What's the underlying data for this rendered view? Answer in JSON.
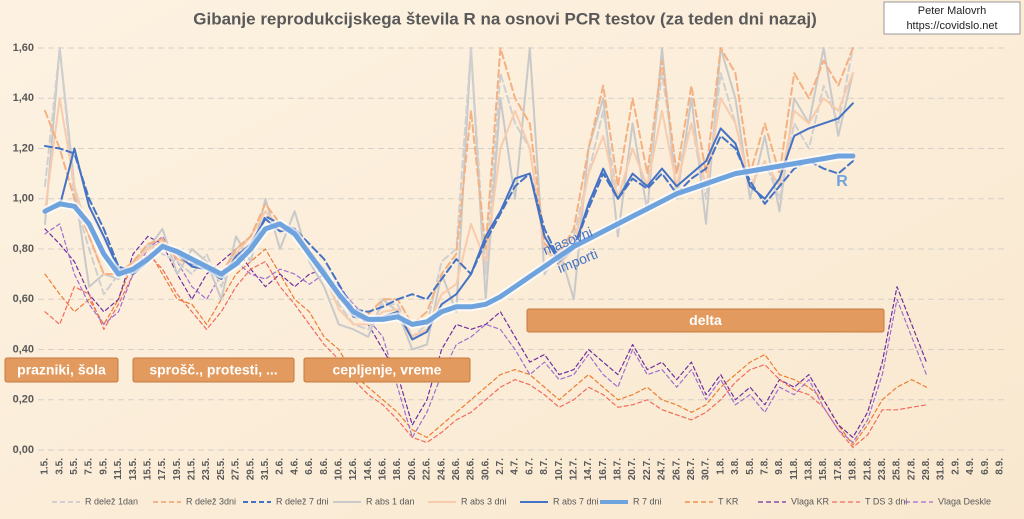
{
  "chart_data": {
    "type": "line",
    "title": "Gibanje reprodukcijskega števila R na osnovi PCR testov (za teden dni nazaj)",
    "author": "Peter Malovrh",
    "url": "https://covidslo.net",
    "categories": [
      "1.5.",
      "3.5.",
      "5.5.",
      "7.5.",
      "9.5.",
      "11.5.",
      "13.5.",
      "15.5.",
      "17.5.",
      "19.5.",
      "21.5.",
      "23.5.",
      "25.5.",
      "27.5.",
      "29.5.",
      "31.5.",
      "2.6.",
      "4.6.",
      "6.6.",
      "8.6.",
      "10.6.",
      "12.6.",
      "14.6.",
      "16.6.",
      "18.6.",
      "20.6.",
      "22.6.",
      "24.6.",
      "26.6.",
      "28.6.",
      "30.6.",
      "2.7.",
      "4.7.",
      "6.7.",
      "8.7.",
      "10.7.",
      "12.7.",
      "14.7.",
      "16.7.",
      "18.7.",
      "20.7.",
      "22.7.",
      "24.7.",
      "26.7.",
      "28.7.",
      "30.7.",
      "1.8.",
      "3.8.",
      "5.8.",
      "7.8.",
      "9.8.",
      "11.8.",
      "13.8.",
      "15.8.",
      "17.8.",
      "19.8.",
      "21.8.",
      "23.8.",
      "25.8.",
      "27.8.",
      "29.8.",
      "31.8.",
      "2.9.",
      "4.9.",
      "6.9.",
      "8.9."
    ],
    "ylim": [
      0,
      1.6
    ],
    "yticks": [
      {
        "value": 0,
        "label": "0,00"
      },
      {
        "value": 0.2,
        "label": "0,20"
      },
      {
        "value": 0.4,
        "label": "0,40"
      },
      {
        "value": 0.6,
        "label": "0,60"
      },
      {
        "value": 0.8,
        "label": "0,80"
      },
      {
        "value": 1.0,
        "label": "1,00"
      },
      {
        "value": 1.2,
        "label": "1,20"
      },
      {
        "value": 1.4,
        "label": "1,40"
      },
      {
        "value": 1.6,
        "label": "1,60"
      }
    ],
    "grid": true,
    "legend": "bottom",
    "series": [
      {
        "name": "R delež 1dan",
        "color": "#d0d0d0",
        "dashed": true,
        "values": [
          1.05,
          1.6,
          1.0,
          0.8,
          0.62,
          0.7,
          0.72,
          0.82,
          0.78,
          0.75,
          0.7,
          0.78,
          0.65,
          0.8,
          0.85,
          0.95,
          0.88,
          0.85,
          0.78,
          0.72,
          0.58,
          0.5,
          0.48,
          0.58,
          0.58,
          0.45,
          0.5,
          0.75,
          0.8,
          1.6,
          0.7,
          1.5,
          1.3,
          1.2,
          0.8,
          0.75,
          0.85,
          1.1,
          1.35,
          1.0,
          1.2,
          1.05,
          1.5,
          1.1,
          1.3,
          1.0,
          1.5,
          1.3,
          1.05,
          1.15,
          1.0,
          1.3,
          1.2,
          1.45,
          1.3,
          1.6,
          null,
          null,
          null,
          null,
          null,
          null,
          null,
          null,
          null,
          null
        ]
      },
      {
        "name": "R delež 3dni",
        "color": "#f4b183",
        "dashed": true,
        "values": [
          1.35,
          1.2,
          1.0,
          0.85,
          0.7,
          0.7,
          0.75,
          0.82,
          0.84,
          0.76,
          0.74,
          0.74,
          0.7,
          0.8,
          0.85,
          0.98,
          0.9,
          0.88,
          0.8,
          0.72,
          0.6,
          0.55,
          0.54,
          0.6,
          0.6,
          0.5,
          0.55,
          0.7,
          0.78,
          1.35,
          0.8,
          1.6,
          1.4,
          1.3,
          0.82,
          0.78,
          0.88,
          1.2,
          1.45,
          1.05,
          1.4,
          1.1,
          1.55,
          1.1,
          1.45,
          1.1,
          1.6,
          1.5,
          1.1,
          1.3,
          1.1,
          1.5,
          1.4,
          1.55,
          1.45,
          1.6,
          null,
          null,
          null,
          null,
          null,
          null,
          null,
          null,
          null,
          null
        ]
      },
      {
        "name": "R delež 7 dni",
        "color": "#4472c4",
        "dashed": true,
        "values": [
          1.21,
          1.2,
          1.18,
          1.0,
          0.88,
          0.73,
          0.71,
          0.76,
          0.82,
          0.79,
          0.74,
          0.73,
          0.7,
          0.76,
          0.8,
          0.93,
          0.9,
          0.88,
          0.82,
          0.76,
          0.66,
          0.56,
          0.55,
          0.57,
          0.6,
          0.62,
          0.6,
          0.68,
          0.76,
          0.7,
          0.83,
          0.94,
          1.05,
          1.1,
          0.88,
          0.76,
          0.8,
          0.96,
          1.1,
          1.0,
          1.08,
          1.04,
          1.1,
          1.02,
          1.08,
          1.12,
          1.25,
          1.2,
          1.07,
          0.98,
          1.05,
          1.12,
          1.15,
          1.12,
          1.1,
          1.15,
          null,
          null,
          null,
          null,
          null,
          null,
          null,
          null,
          null,
          null
        ]
      },
      {
        "name": "R abs 1 dan",
        "color": "#c9c9c9",
        "dashed": false,
        "values": [
          0.9,
          1.6,
          1.05,
          0.65,
          0.7,
          0.68,
          0.75,
          0.8,
          0.88,
          0.7,
          0.8,
          0.75,
          0.6,
          0.85,
          0.75,
          1.0,
          0.8,
          0.95,
          0.75,
          0.65,
          0.5,
          0.48,
          0.45,
          0.6,
          0.55,
          0.4,
          0.42,
          0.7,
          0.55,
          1.6,
          0.6,
          1.4,
          1.0,
          1.6,
          0.7,
          0.8,
          0.6,
          1.2,
          1.4,
          0.85,
          1.3,
          0.95,
          1.6,
          1.0,
          1.4,
          0.9,
          1.6,
          1.4,
          1.0,
          1.25,
          0.95,
          1.4,
          1.3,
          1.6,
          1.25,
          1.5,
          null,
          null,
          null,
          null,
          null,
          null,
          null,
          null,
          null,
          null
        ]
      },
      {
        "name": "R abs 3 dni",
        "color": "#f8cbad",
        "dashed": false,
        "values": [
          0.95,
          1.4,
          1.05,
          0.85,
          0.7,
          0.7,
          0.74,
          0.8,
          0.83,
          0.76,
          0.74,
          0.74,
          0.68,
          0.78,
          0.85,
          0.95,
          0.88,
          0.86,
          0.78,
          0.7,
          0.56,
          0.5,
          0.5,
          0.55,
          0.56,
          0.45,
          0.48,
          0.62,
          0.66,
          0.9,
          0.75,
          1.2,
          1.35,
          1.2,
          0.8,
          0.74,
          0.8,
          1.1,
          1.25,
          1.0,
          1.2,
          1.05,
          1.35,
          1.05,
          1.3,
          1.05,
          1.4,
          1.3,
          1.05,
          1.15,
          1.05,
          1.35,
          1.3,
          1.4,
          1.35,
          1.5,
          null,
          null,
          null,
          null,
          null,
          null,
          null,
          null,
          null,
          null
        ]
      },
      {
        "name": "R abs 7 dni",
        "color": "#4472c4",
        "dashed": false,
        "values": [
          0.95,
          0.97,
          1.2,
          0.97,
          0.85,
          0.72,
          0.7,
          0.75,
          0.82,
          0.78,
          0.73,
          0.72,
          0.68,
          0.77,
          0.82,
          0.92,
          0.87,
          0.88,
          0.78,
          0.72,
          0.62,
          0.53,
          0.52,
          0.53,
          0.55,
          0.44,
          0.47,
          0.58,
          0.62,
          0.7,
          0.85,
          0.95,
          1.08,
          1.1,
          0.85,
          0.75,
          0.8,
          0.98,
          1.12,
          1.0,
          1.1,
          1.05,
          1.12,
          1.05,
          1.1,
          1.15,
          1.28,
          1.22,
          1.05,
          1.0,
          1.08,
          1.25,
          1.28,
          1.3,
          1.32,
          1.38,
          null,
          null,
          null,
          null,
          null,
          null,
          null,
          null,
          null,
          null
        ]
      },
      {
        "name": "R 7 dni",
        "color": "#6fa3de",
        "dashed": false,
        "values": [
          0.95,
          0.98,
          0.97,
          0.9,
          0.78,
          0.7,
          0.72,
          0.76,
          0.81,
          0.79,
          0.76,
          0.73,
          0.7,
          0.74,
          0.8,
          0.88,
          0.9,
          0.86,
          0.78,
          0.7,
          0.62,
          0.55,
          0.52,
          0.52,
          0.53,
          0.5,
          0.51,
          0.55,
          0.57,
          0.57,
          0.58,
          0.61,
          0.65,
          0.69,
          0.73,
          0.77,
          0.81,
          0.84,
          0.87,
          0.9,
          0.93,
          0.96,
          0.99,
          1.02,
          1.04,
          1.06,
          1.08,
          1.1,
          1.11,
          1.12,
          1.13,
          1.14,
          1.15,
          1.16,
          1.17,
          1.17,
          null,
          null,
          null,
          null,
          null,
          null,
          null,
          null,
          null,
          null
        ]
      },
      {
        "name": "T KR",
        "color": "#ed7d31",
        "dashed": true,
        "values": [
          0.7,
          0.62,
          0.55,
          0.6,
          0.5,
          0.6,
          0.75,
          0.8,
          0.7,
          0.6,
          0.58,
          0.5,
          0.6,
          0.7,
          0.75,
          0.8,
          0.7,
          0.6,
          0.55,
          0.45,
          0.4,
          0.3,
          0.25,
          0.2,
          0.15,
          0.08,
          0.05,
          0.1,
          0.15,
          0.2,
          0.25,
          0.3,
          0.32,
          0.3,
          0.25,
          0.2,
          0.25,
          0.3,
          0.25,
          0.2,
          0.22,
          0.25,
          0.2,
          0.18,
          0.15,
          0.18,
          0.25,
          0.3,
          0.35,
          0.38,
          0.3,
          0.28,
          0.25,
          0.2,
          0.1,
          0.02,
          0.1,
          0.2,
          0.25,
          0.28,
          0.25,
          null,
          null,
          null,
          null,
          null
        ]
      },
      {
        "name": "Vlaga KR",
        "color": "#7030a0",
        "dashed": true,
        "values": [
          0.88,
          0.82,
          0.75,
          0.62,
          0.55,
          0.6,
          0.78,
          0.85,
          0.82,
          0.7,
          0.6,
          0.7,
          0.75,
          0.8,
          0.72,
          0.65,
          0.7,
          0.65,
          0.7,
          0.72,
          0.6,
          0.55,
          0.5,
          0.4,
          0.3,
          0.1,
          0.2,
          0.4,
          0.5,
          0.48,
          0.5,
          0.55,
          0.45,
          0.35,
          0.38,
          0.3,
          0.32,
          0.4,
          0.35,
          0.3,
          0.42,
          0.32,
          0.35,
          0.28,
          0.35,
          0.22,
          0.3,
          0.2,
          0.25,
          0.18,
          0.28,
          0.25,
          0.3,
          0.2,
          0.1,
          0.05,
          0.15,
          0.35,
          0.65,
          0.5,
          0.35,
          null,
          null,
          null,
          null,
          null
        ]
      },
      {
        "name": "T DS 3 dni",
        "color": "#f26b5b",
        "dashed": true,
        "values": [
          0.55,
          0.5,
          0.65,
          0.62,
          0.48,
          0.58,
          0.7,
          0.78,
          0.72,
          0.62,
          0.55,
          0.48,
          0.55,
          0.65,
          0.72,
          0.75,
          0.65,
          0.58,
          0.5,
          0.42,
          0.36,
          0.28,
          0.22,
          0.18,
          0.12,
          0.05,
          0.03,
          0.07,
          0.12,
          0.15,
          0.2,
          0.25,
          0.28,
          0.26,
          0.22,
          0.17,
          0.2,
          0.25,
          0.22,
          0.17,
          0.18,
          0.2,
          0.16,
          0.14,
          0.12,
          0.15,
          0.2,
          0.27,
          0.32,
          0.34,
          0.28,
          0.24,
          0.22,
          0.17,
          0.08,
          0.01,
          0.06,
          0.16,
          0.16,
          0.17,
          0.18,
          null,
          null,
          null,
          null,
          null
        ]
      },
      {
        "name": "Vlaga Deskle",
        "color": "#9e6fcf",
        "dashed": true,
        "values": [
          0.86,
          0.9,
          0.7,
          0.58,
          0.5,
          0.55,
          0.7,
          0.8,
          0.85,
          0.75,
          0.65,
          0.6,
          0.7,
          0.75,
          0.7,
          0.68,
          0.72,
          0.7,
          0.66,
          0.7,
          0.65,
          0.58,
          0.52,
          0.45,
          0.25,
          0.05,
          0.15,
          0.3,
          0.42,
          0.45,
          0.5,
          0.48,
          0.4,
          0.3,
          0.35,
          0.28,
          0.3,
          0.38,
          0.3,
          0.25,
          0.4,
          0.3,
          0.32,
          0.25,
          0.32,
          0.2,
          0.28,
          0.18,
          0.22,
          0.15,
          0.25,
          0.22,
          0.28,
          0.17,
          0.08,
          0.03,
          0.12,
          0.3,
          0.6,
          0.45,
          0.3,
          null,
          null,
          null,
          null,
          null
        ]
      }
    ],
    "annotations": [
      "prazniki, šola",
      "sprošč., protesti, ...",
      "cepljenje, vreme",
      "delta",
      "masovni",
      "importi",
      "R"
    ]
  }
}
